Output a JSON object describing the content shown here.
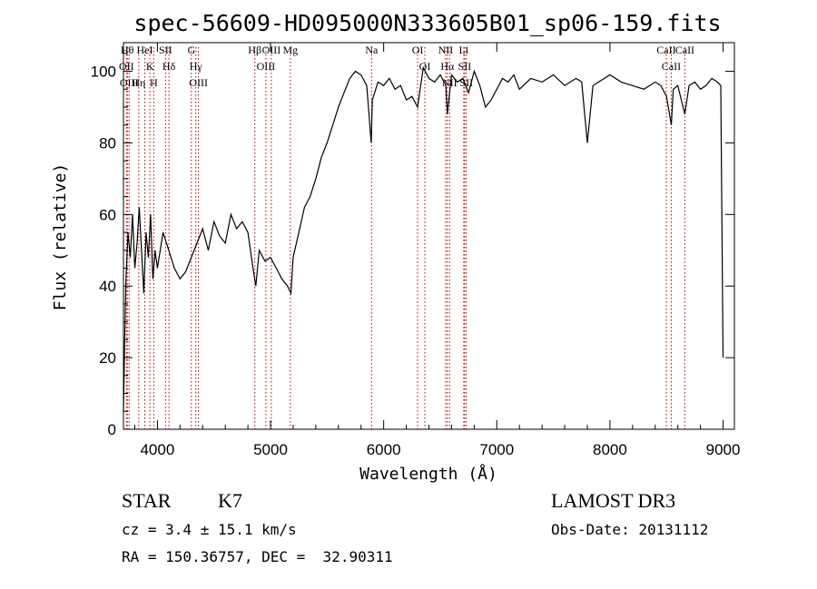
{
  "chart_data": {
    "type": "line",
    "title": "spec-56609-HD095000N333605B01_sp06-159.fits",
    "xlabel": "Wavelength (Å)",
    "ylabel": "Flux (relative)",
    "xlim": [
      3700,
      9100
    ],
    "ylim": [
      0,
      108
    ],
    "xticks": [
      4000,
      5000,
      6000,
      7000,
      8000,
      9000
    ],
    "yticks": [
      0,
      20,
      40,
      60,
      80,
      100
    ],
    "grid": false,
    "series": [
      {
        "color": "#000000",
        "x": [
          3700,
          3720,
          3740,
          3760,
          3780,
          3800,
          3820,
          3840,
          3860,
          3880,
          3900,
          3920,
          3940,
          3960,
          3980,
          4000,
          4050,
          4100,
          4150,
          4200,
          4250,
          4300,
          4350,
          4400,
          4450,
          4500,
          4550,
          4600,
          4650,
          4700,
          4750,
          4800,
          4850,
          4870,
          4900,
          4950,
          5000,
          5050,
          5100,
          5150,
          5180,
          5200,
          5250,
          5300,
          5350,
          5400,
          5450,
          5500,
          5550,
          5600,
          5650,
          5700,
          5750,
          5800,
          5850,
          5890,
          5900,
          5950,
          6000,
          6050,
          6100,
          6150,
          6200,
          6250,
          6300,
          6350,
          6400,
          6450,
          6500,
          6550,
          6563,
          6600,
          6650,
          6700,
          6750,
          6800,
          6850,
          6900,
          6950,
          7000,
          7050,
          7100,
          7150,
          7200,
          7300,
          7400,
          7500,
          7600,
          7700,
          7750,
          7800,
          7850,
          7900,
          8000,
          8100,
          8200,
          8300,
          8400,
          8450,
          8500,
          8542,
          8560,
          8600,
          8662,
          8700,
          8750,
          8800,
          8850,
          8900,
          8950,
          8980,
          9000
        ],
        "y": [
          5,
          40,
          55,
          48,
          60,
          45,
          52,
          62,
          50,
          38,
          55,
          48,
          60,
          42,
          50,
          45,
          55,
          50,
          45,
          42,
          44,
          48,
          52,
          56,
          50,
          58,
          54,
          52,
          60,
          56,
          58,
          55,
          44,
          40,
          50,
          47,
          48,
          45,
          42,
          40,
          38,
          48,
          55,
          62,
          65,
          70,
          76,
          80,
          85,
          90,
          94,
          98,
          100,
          99,
          96,
          80,
          92,
          97,
          96,
          98,
          95,
          96,
          92,
          93,
          90,
          101,
          98,
          97,
          99,
          96,
          88,
          99,
          97,
          98,
          94,
          100,
          96,
          90,
          92,
          95,
          98,
          97,
          99,
          95,
          98,
          97,
          99,
          96,
          98,
          97,
          80,
          96,
          97,
          99,
          97,
          96,
          95,
          97,
          96,
          93,
          85,
          95,
          96,
          88,
          96,
          97,
          95,
          96,
          98,
          97,
          96,
          20
        ]
      }
    ],
    "line_markers": [
      {
        "w": 3734,
        "label": "Hθ"
      },
      {
        "w": 3727,
        "label": "OII"
      },
      {
        "w": 3750,
        "label": "OIII"
      },
      {
        "w": 3835,
        "label": "Hη"
      },
      {
        "w": 3889,
        "label": "HeI"
      },
      {
        "w": 3934,
        "label": "K"
      },
      {
        "w": 3968,
        "label": "H"
      },
      {
        "w": 4072,
        "label": "SII"
      },
      {
        "w": 4102,
        "label": "Hδ"
      },
      {
        "w": 4300,
        "label": "G"
      },
      {
        "w": 4340,
        "label": "Hγ"
      },
      {
        "w": 4363,
        "label": "OIII"
      },
      {
        "w": 4861,
        "label": "Hβ"
      },
      {
        "w": 4959,
        "label": "OIII"
      },
      {
        "w": 5007,
        "label": "OIII"
      },
      {
        "w": 5175,
        "label": "Mg"
      },
      {
        "w": 5893,
        "label": "Na"
      },
      {
        "w": 6300,
        "label": "OI"
      },
      {
        "w": 6364,
        "label": "OI"
      },
      {
        "w": 6548,
        "label": "NII"
      },
      {
        "w": 6563,
        "label": "Hα"
      },
      {
        "w": 6583,
        "label": "NII"
      },
      {
        "w": 6708,
        "label": "Li"
      },
      {
        "w": 6716,
        "label": "SII"
      },
      {
        "w": 6731,
        "label": "SII"
      },
      {
        "w": 8498,
        "label": "CaII"
      },
      {
        "w": 8542,
        "label": "CaII"
      },
      {
        "w": 8662,
        "label": "CaII"
      }
    ]
  },
  "info": {
    "class": "STAR",
    "subclass": "K7",
    "survey": "LAMOST DR3",
    "cz": "cz = 3.4 ± 15.1 km/s",
    "obs_date": "Obs-Date: 20131112",
    "radec": "RA = 150.36757, DEC =  32.90311"
  }
}
